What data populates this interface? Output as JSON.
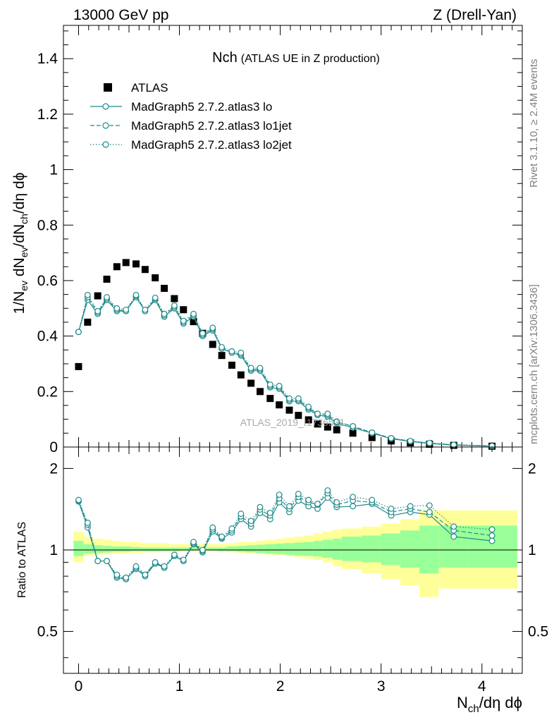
{
  "header": {
    "energy": "13000 GeV pp",
    "process": "Z (Drell-Yan)"
  },
  "side_labels": {
    "rivet": "Rivet 3.1.10, ≥ 2.4M events",
    "mcplots": "mcplots.cern.ch [arXiv:1306.3436]"
  },
  "watermark": "ATLAS_2019_I1736531",
  "chart_data": [
    {
      "type": "scatter",
      "panel": "main",
      "title_main": "Nch",
      "title_sub": "(ATLAS UE in Z production)",
      "ylabel": "1/N_ev dN_ev/dN_ch/dη dϕ",
      "xlabel": "N_ch/dη dϕ",
      "xlim": [
        -0.15,
        4.4
      ],
      "ylim": [
        0,
        1.52
      ],
      "xticks": [
        "0",
        "1",
        "2",
        "3",
        "4"
      ],
      "yticks": [
        "0.2",
        "0.4",
        "0.6",
        "0.8",
        "1",
        "1.2",
        "1.4"
      ],
      "yzero_label": "0",
      "legend_position": "top-left",
      "series": [
        {
          "name": "ATLAS",
          "color": "#000000",
          "marker": "square",
          "x": [
            0.0,
            0.09,
            0.19,
            0.28,
            0.38,
            0.47,
            0.57,
            0.66,
            0.76,
            0.85,
            0.95,
            1.04,
            1.14,
            1.23,
            1.33,
            1.42,
            1.52,
            1.61,
            1.71,
            1.8,
            1.9,
            1.99,
            2.09,
            2.18,
            2.28,
            2.37,
            2.47,
            2.56,
            2.72,
            2.91,
            3.1,
            3.29,
            3.48,
            3.72,
            4.1
          ],
          "y": [
            0.29,
            0.45,
            0.545,
            0.605,
            0.65,
            0.665,
            0.66,
            0.64,
            0.61,
            0.572,
            0.535,
            0.495,
            0.452,
            0.41,
            0.37,
            0.33,
            0.295,
            0.26,
            0.23,
            0.2,
            0.175,
            0.152,
            0.133,
            0.114,
            0.098,
            0.083,
            0.072,
            0.062,
            0.05,
            0.034,
            0.022,
            0.015,
            0.01,
            0.006,
            0.003
          ]
        },
        {
          "name": "MadGraph5 2.7.2.atlas3 lo",
          "color": "#1f8a8a",
          "linestyle": "solid",
          "x": [
            0.0,
            0.09,
            0.19,
            0.28,
            0.38,
            0.47,
            0.57,
            0.66,
            0.76,
            0.85,
            0.95,
            1.04,
            1.14,
            1.23,
            1.33,
            1.42,
            1.52,
            1.61,
            1.71,
            1.8,
            1.9,
            1.99,
            2.09,
            2.18,
            2.28,
            2.37,
            2.47,
            2.56,
            2.72,
            2.91,
            3.1,
            3.29,
            3.48,
            3.72,
            4.1
          ],
          "y": [
            0.415,
            0.53,
            0.48,
            0.53,
            0.49,
            0.49,
            0.54,
            0.49,
            0.53,
            0.47,
            0.5,
            0.445,
            0.47,
            0.4,
            0.42,
            0.355,
            0.34,
            0.33,
            0.275,
            0.275,
            0.215,
            0.21,
            0.165,
            0.165,
            0.135,
            0.115,
            0.11,
            0.085,
            0.07,
            0.05,
            0.03,
            0.02,
            0.013,
            0.007,
            0.003
          ]
        },
        {
          "name": "MadGraph5 2.7.2.atlas3 lo1jet",
          "color": "#1f8a8a",
          "linestyle": "dashed",
          "x": [
            0.0,
            0.09,
            0.19,
            0.28,
            0.38,
            0.47,
            0.57,
            0.66,
            0.76,
            0.85,
            0.95,
            1.04,
            1.14,
            1.23,
            1.33,
            1.42,
            1.52,
            1.61,
            1.71,
            1.8,
            1.9,
            1.99,
            2.09,
            2.18,
            2.28,
            2.37,
            2.47,
            2.56,
            2.72,
            2.91,
            3.1,
            3.29,
            3.48,
            3.72,
            4.1
          ],
          "y": [
            0.415,
            0.54,
            0.485,
            0.535,
            0.495,
            0.49,
            0.545,
            0.49,
            0.535,
            0.475,
            0.505,
            0.45,
            0.475,
            0.405,
            0.425,
            0.355,
            0.34,
            0.335,
            0.28,
            0.28,
            0.22,
            0.215,
            0.17,
            0.17,
            0.14,
            0.12,
            0.115,
            0.09,
            0.075,
            0.052,
            0.032,
            0.021,
            0.014,
            0.008,
            0.004
          ]
        },
        {
          "name": "MadGraph5 2.7.2.atlas3 lo2jet",
          "color": "#1f8a8a",
          "linestyle": "dotted",
          "x": [
            0.0,
            0.09,
            0.19,
            0.28,
            0.38,
            0.47,
            0.57,
            0.66,
            0.76,
            0.85,
            0.95,
            1.04,
            1.14,
            1.23,
            1.33,
            1.42,
            1.52,
            1.61,
            1.71,
            1.8,
            1.9,
            1.99,
            2.09,
            2.18,
            2.28,
            2.37,
            2.47,
            2.56,
            2.72,
            2.91,
            3.1,
            3.29,
            3.48,
            3.72,
            4.1
          ],
          "y": [
            0.415,
            0.548,
            0.49,
            0.54,
            0.5,
            0.495,
            0.548,
            0.495,
            0.538,
            0.48,
            0.51,
            0.455,
            0.48,
            0.41,
            0.43,
            0.36,
            0.345,
            0.34,
            0.285,
            0.285,
            0.225,
            0.22,
            0.175,
            0.175,
            0.145,
            0.12,
            0.12,
            0.092,
            0.075,
            0.052,
            0.032,
            0.022,
            0.015,
            0.008,
            0.004
          ]
        }
      ]
    },
    {
      "type": "scatter",
      "panel": "ratio",
      "ylabel": "Ratio to ATLAS",
      "xlim": [
        -0.15,
        4.4
      ],
      "ylim": [
        0.35,
        2.4
      ],
      "yscale": "log",
      "yticks": [
        "0.5",
        "1",
        "2"
      ],
      "reference_line": 1,
      "bands": {
        "x_edges": [
          -0.05,
          0.05,
          0.14,
          0.24,
          0.33,
          0.43,
          0.52,
          0.62,
          0.71,
          0.81,
          0.9,
          1.0,
          1.09,
          1.19,
          1.28,
          1.38,
          1.47,
          1.57,
          1.66,
          1.76,
          1.85,
          1.95,
          2.04,
          2.14,
          2.23,
          2.33,
          2.42,
          2.52,
          2.61,
          2.81,
          3.0,
          3.19,
          3.38,
          3.57,
          3.86,
          4.35
        ],
        "yellow_lo": [
          0.9,
          0.95,
          0.96,
          0.965,
          0.97,
          0.975,
          0.975,
          0.98,
          0.98,
          0.985,
          0.985,
          0.99,
          0.99,
          0.99,
          0.99,
          0.985,
          0.98,
          0.975,
          0.97,
          0.965,
          0.96,
          0.955,
          0.95,
          0.94,
          0.93,
          0.92,
          0.9,
          0.87,
          0.85,
          0.82,
          0.78,
          0.74,
          0.67,
          0.72,
          0.72
        ],
        "yellow_hi": [
          1.17,
          1.12,
          1.1,
          1.09,
          1.08,
          1.07,
          1.07,
          1.06,
          1.06,
          1.06,
          1.05,
          1.05,
          1.05,
          1.05,
          1.05,
          1.05,
          1.06,
          1.07,
          1.07,
          1.08,
          1.09,
          1.1,
          1.11,
          1.12,
          1.13,
          1.15,
          1.17,
          1.19,
          1.2,
          1.22,
          1.25,
          1.3,
          1.4,
          1.4,
          1.4
        ],
        "green_lo": [
          0.95,
          0.97,
          0.975,
          0.98,
          0.985,
          0.985,
          0.99,
          0.99,
          0.99,
          0.99,
          0.99,
          0.995,
          0.995,
          0.995,
          0.995,
          0.99,
          0.99,
          0.985,
          0.98,
          0.975,
          0.97,
          0.965,
          0.96,
          0.955,
          0.95,
          0.945,
          0.935,
          0.92,
          0.91,
          0.9,
          0.88,
          0.86,
          0.82,
          0.86,
          0.86
        ],
        "green_hi": [
          1.08,
          1.05,
          1.04,
          1.035,
          1.03,
          1.03,
          1.025,
          1.02,
          1.02,
          1.02,
          1.02,
          1.02,
          1.02,
          1.02,
          1.02,
          1.02,
          1.03,
          1.035,
          1.04,
          1.045,
          1.05,
          1.055,
          1.06,
          1.065,
          1.07,
          1.08,
          1.09,
          1.1,
          1.12,
          1.13,
          1.15,
          1.18,
          1.23,
          1.23,
          1.23
        ],
        "yellow_color": "#ffff99",
        "green_color": "#99ff99"
      },
      "series": [
        {
          "name": "MadGraph5 2.7.2.atlas3 lo",
          "color": "#1f8a8a",
          "linestyle": "solid",
          "x": [
            0.0,
            0.09,
            0.19,
            0.28,
            0.38,
            0.47,
            0.57,
            0.66,
            0.76,
            0.85,
            0.95,
            1.04,
            1.14,
            1.23,
            1.33,
            1.42,
            1.52,
            1.61,
            1.71,
            1.8,
            1.9,
            1.99,
            2.09,
            2.18,
            2.28,
            2.37,
            2.47,
            2.56,
            2.72,
            2.91,
            3.1,
            3.29,
            3.48,
            3.72,
            4.1
          ],
          "y": [
            1.51,
            1.21,
            0.91,
            0.91,
            0.79,
            0.78,
            0.85,
            0.8,
            0.89,
            0.86,
            0.95,
            0.91,
            1.05,
            0.98,
            1.17,
            1.1,
            1.16,
            1.3,
            1.22,
            1.37,
            1.3,
            1.5,
            1.38,
            1.52,
            1.45,
            1.42,
            1.56,
            1.44,
            1.45,
            1.48,
            1.34,
            1.38,
            1.35,
            1.12,
            1.08
          ]
        },
        {
          "name": "MadGraph5 2.7.2.atlas3 lo1jet",
          "color": "#1f8a8a",
          "linestyle": "dashed",
          "x": [
            0.0,
            0.09,
            0.19,
            0.28,
            0.38,
            0.47,
            0.57,
            0.66,
            0.76,
            0.85,
            0.95,
            1.04,
            1.14,
            1.23,
            1.33,
            1.42,
            1.52,
            1.61,
            1.71,
            1.8,
            1.9,
            1.99,
            2.09,
            2.18,
            2.28,
            2.37,
            2.47,
            2.56,
            2.72,
            2.91,
            3.1,
            3.29,
            3.48,
            3.72,
            4.1
          ],
          "y": [
            1.52,
            1.24,
            0.91,
            0.91,
            0.8,
            0.78,
            0.86,
            0.81,
            0.9,
            0.86,
            0.95,
            0.91,
            1.06,
            0.99,
            1.19,
            1.11,
            1.18,
            1.33,
            1.25,
            1.41,
            1.34,
            1.55,
            1.42,
            1.57,
            1.5,
            1.47,
            1.62,
            1.47,
            1.52,
            1.5,
            1.38,
            1.42,
            1.38,
            1.18,
            1.13
          ]
        },
        {
          "name": "MadGraph5 2.7.2.atlas3 lo2jet",
          "color": "#1f8a8a",
          "linestyle": "dotted",
          "x": [
            0.0,
            0.09,
            0.19,
            0.28,
            0.38,
            0.47,
            0.57,
            0.66,
            0.76,
            0.85,
            0.95,
            1.04,
            1.14,
            1.23,
            1.33,
            1.42,
            1.52,
            1.61,
            1.71,
            1.8,
            1.9,
            1.99,
            2.09,
            2.18,
            2.28,
            2.37,
            2.47,
            2.56,
            2.72,
            2.91,
            3.1,
            3.29,
            3.48,
            3.72,
            4.1
          ],
          "y": [
            1.53,
            1.26,
            0.91,
            0.91,
            0.81,
            0.79,
            0.87,
            0.81,
            0.9,
            0.87,
            0.96,
            0.92,
            1.07,
            1.0,
            1.21,
            1.12,
            1.2,
            1.36,
            1.28,
            1.44,
            1.37,
            1.6,
            1.45,
            1.61,
            1.53,
            1.48,
            1.66,
            1.5,
            1.57,
            1.53,
            1.42,
            1.45,
            1.46,
            1.22,
            1.19
          ]
        }
      ]
    }
  ]
}
